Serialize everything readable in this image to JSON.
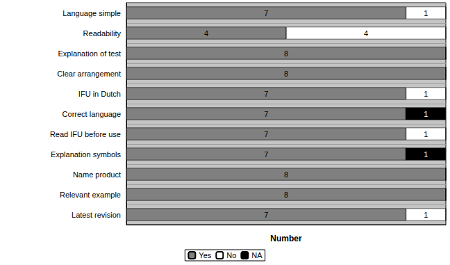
{
  "chart_data": {
    "type": "bar",
    "orientation": "horizontal",
    "stacked": true,
    "data_labels": true,
    "tick_labels": "y",
    "grid": true,
    "legend": "bottom",
    "xlabel": "Number",
    "categories": [
      "Language simple",
      "Readability",
      "Explanation of test",
      "Clear arrangement",
      "IFU in Dutch",
      "Correct language",
      "Read IFU before use",
      "Explanation symbols",
      "Name product",
      "Relevant example",
      "Latest revision"
    ],
    "xlim": [
      0,
      8
    ],
    "series": [
      {
        "name": "Yes",
        "color": "#808080",
        "values": [
          7,
          4,
          8,
          8,
          7,
          7,
          7,
          7,
          8,
          8,
          7
        ]
      },
      {
        "name": "No",
        "color": "#ffffff",
        "values": [
          1,
          4,
          0,
          0,
          1,
          0,
          1,
          0,
          0,
          0,
          1
        ]
      },
      {
        "name": "NA",
        "color": "#000000",
        "values": [
          0,
          0,
          0,
          0,
          0,
          1,
          0,
          1,
          0,
          0,
          0
        ]
      }
    ]
  }
}
